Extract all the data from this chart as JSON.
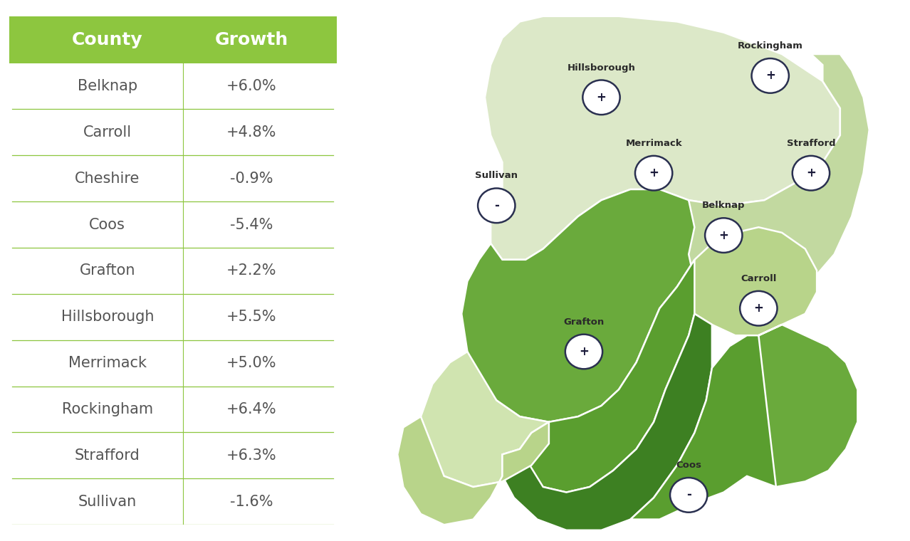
{
  "counties": [
    "Belknap",
    "Carroll",
    "Cheshire",
    "Coos",
    "Grafton",
    "Hillsborough",
    "Merrimack",
    "Rockingham",
    "Strafford",
    "Sullivan"
  ],
  "growth": [
    "+6.0%",
    "+4.8%",
    "-0.9%",
    "-5.4%",
    "+2.2%",
    "+5.5%",
    "+5.0%",
    "+6.4%",
    "+6.3%",
    "-1.6%"
  ],
  "header_bg": "#8dc63f",
  "header_text": "#ffffff",
  "header_county": "County",
  "header_growth": "Growth",
  "row_line_color": "#8dc63f",
  "row_text_color": "#555555",
  "bg_color": "#ffffff",
  "county_colors": {
    "Coos": "#dce8c8",
    "Grafton": "#6aaa3c",
    "Carroll": "#c2d9a0",
    "Sullivan": "#d0e4b0",
    "Cheshire": "#b8d48a",
    "Merrimack": "#5a9e2f",
    "Belknap": "#b8d48a",
    "Strafford": "#6aaa3c",
    "Hillsborough": "#3d8022",
    "Rockingham": "#5a9e2f"
  },
  "label_positions": {
    "Coos": [
      0.62,
      0.085,
      "-"
    ],
    "Grafton": [
      0.44,
      0.35,
      "+"
    ],
    "Carroll": [
      0.74,
      0.43,
      "+"
    ],
    "Belknap": [
      0.68,
      0.565,
      "+"
    ],
    "Sullivan": [
      0.29,
      0.62,
      "-"
    ],
    "Merrimack": [
      0.56,
      0.68,
      "+"
    ],
    "Strafford": [
      0.83,
      0.68,
      "+"
    ],
    "Hillsborough": [
      0.47,
      0.82,
      "+"
    ],
    "Rockingham": [
      0.76,
      0.86,
      "+"
    ]
  }
}
